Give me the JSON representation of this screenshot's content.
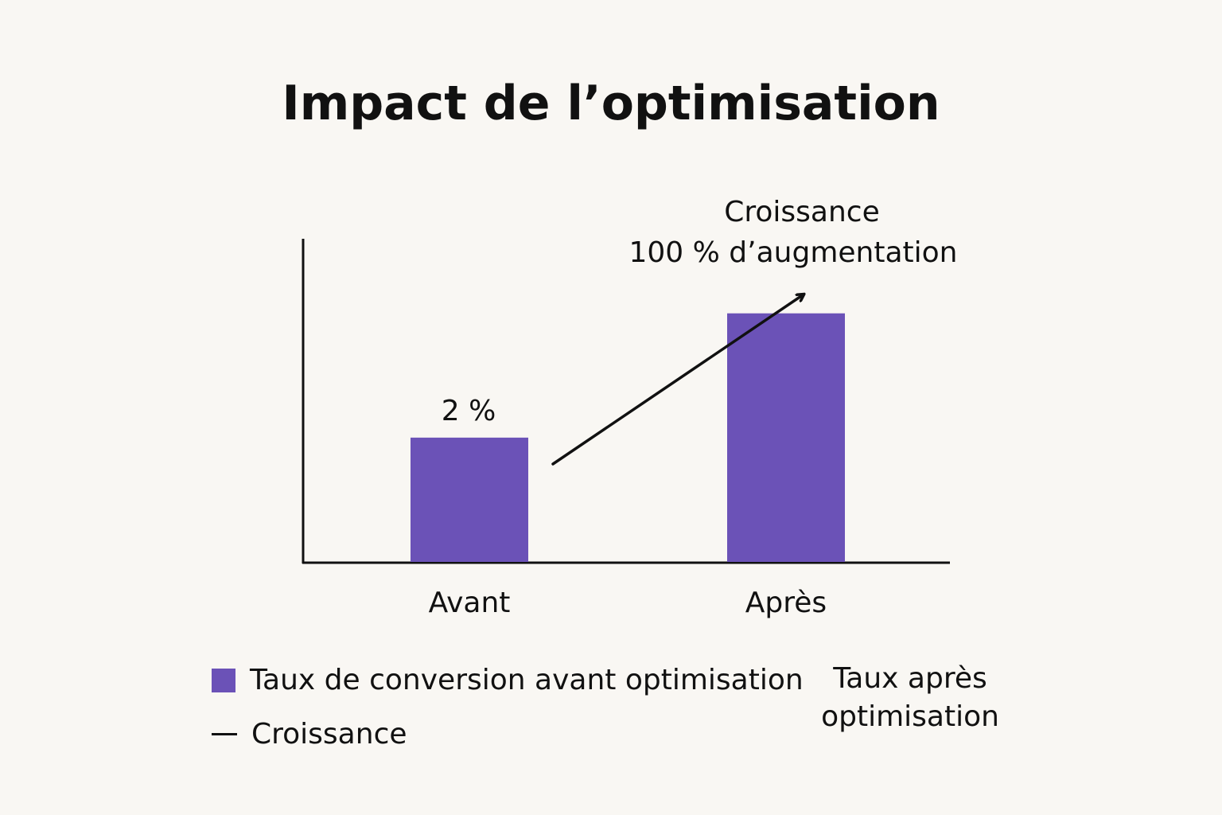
{
  "chart_data": {
    "type": "bar",
    "title": "Impact de l’optimisation",
    "categories": [
      "Avant",
      "Après"
    ],
    "values": [
      2,
      4
    ],
    "data_labels": [
      "2 %",
      ""
    ],
    "xlabel": "",
    "ylabel": "",
    "ylim": [
      0,
      5.2
    ],
    "grid": false,
    "bar_color": "#6b52b7",
    "annotation": {
      "line1": "Croissance",
      "line2": "100 % d’augmentation"
    }
  },
  "legend": {
    "bar_label": "Taux de conversion avant optimisation",
    "line_label": "Croissance",
    "side_label_line1": "Taux après",
    "side_label_line2": "optimisation"
  }
}
